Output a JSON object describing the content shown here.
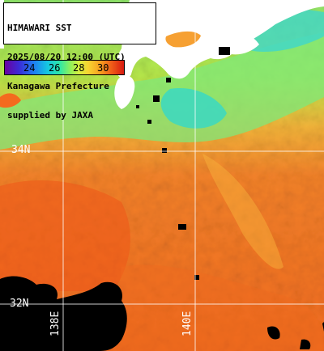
{
  "title_lines": [
    "HIMAWARI SST",
    "2025/08/20 12:00 (UTC)",
    "Kanagawa Prefecture",
    "supplied by JAXA"
  ],
  "colorbar": {
    "ticks": [
      "24",
      "26",
      "28",
      "30"
    ],
    "colors": [
      "#6a00a0",
      "#3b2bd6",
      "#1f7cf2",
      "#15c8e0",
      "#2ee6a8",
      "#8ff05a",
      "#d6f040",
      "#f7d430",
      "#f7a020",
      "#ef5a18",
      "#d81a10"
    ]
  },
  "grid_labels": {
    "lat_34": "34N",
    "lat_32": "32N",
    "lon_138": "138E",
    "lon_140": "140E"
  },
  "palette": {
    "land": "#ffffff",
    "no_data": "#000000",
    "gridline": "#ffffff",
    "warm_sea": "#f3781e",
    "hot_sea": "#ef5618",
    "cool_sea": "#7fe87a",
    "cold_sea": "#35d8c8"
  }
}
